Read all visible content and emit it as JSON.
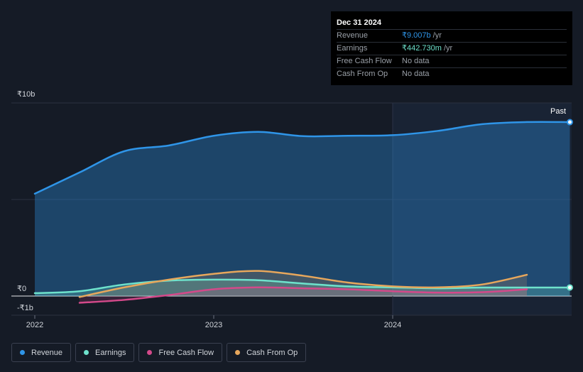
{
  "tooltip": {
    "date": "Dec 31 2024",
    "rows": [
      {
        "label": "Revenue",
        "value": "₹9.007b",
        "unit": "/yr"
      },
      {
        "label": "Earnings",
        "value": "₹442.730m",
        "unit": "/yr"
      },
      {
        "label": "Free Cash Flow",
        "value": "No data"
      },
      {
        "label": "Cash From Op",
        "value": "No data"
      }
    ]
  },
  "past_label": "Past",
  "legend": [
    {
      "label": "Revenue",
      "color": "#2f95e8"
    },
    {
      "label": "Earnings",
      "color": "#6ee2cc"
    },
    {
      "label": "Free Cash Flow",
      "color": "#d3498a"
    },
    {
      "label": "Cash From Op",
      "color": "#e7a75c"
    }
  ],
  "chart_data": {
    "type": "line",
    "title": "",
    "xlabel": "",
    "ylabel": "",
    "y_unit": "₹b",
    "y_ticks": [
      {
        "value": 10,
        "label": "₹10b"
      },
      {
        "value": 0,
        "label": "₹0"
      },
      {
        "value": -1,
        "label": "-₹1b"
      }
    ],
    "x_ticks": [
      {
        "value": 2022.0,
        "label": "2022"
      },
      {
        "value": 2023.0,
        "label": "2023"
      },
      {
        "value": 2024.0,
        "label": "2024"
      }
    ],
    "xlim": [
      2021.87,
      2024.99
    ],
    "ylim": [
      -1.0,
      10.0
    ],
    "grid": true,
    "legend_position": "bottom-left",
    "series": [
      {
        "name": "Revenue",
        "color": "#2f95e8",
        "area": true,
        "x": [
          2022.0,
          2022.25,
          2022.5,
          2022.75,
          2023.0,
          2023.25,
          2023.5,
          2023.75,
          2024.0,
          2024.25,
          2024.5,
          2024.75,
          2024.99
        ],
        "y": [
          5.3,
          6.4,
          7.5,
          7.8,
          8.3,
          8.5,
          8.28,
          8.3,
          8.33,
          8.55,
          8.9,
          9.01,
          9.007
        ]
      },
      {
        "name": "Earnings",
        "color": "#6ee2cc",
        "area": true,
        "x": [
          2022.0,
          2022.25,
          2022.5,
          2022.75,
          2023.0,
          2023.25,
          2023.5,
          2023.75,
          2024.0,
          2024.25,
          2024.5,
          2024.75,
          2024.99
        ],
        "y": [
          0.15,
          0.25,
          0.6,
          0.8,
          0.85,
          0.82,
          0.65,
          0.5,
          0.45,
          0.4,
          0.44,
          0.44,
          0.443
        ]
      },
      {
        "name": "Free Cash Flow",
        "color": "#d3498a",
        "area": true,
        "x": [
          2022.25,
          2022.5,
          2022.75,
          2023.0,
          2023.25,
          2023.5,
          2023.75,
          2024.0,
          2024.25,
          2024.5,
          2024.75
        ],
        "y": [
          -0.35,
          -0.2,
          0.05,
          0.35,
          0.45,
          0.4,
          0.35,
          0.25,
          0.18,
          0.2,
          0.35
        ]
      },
      {
        "name": "Cash From Op",
        "color": "#e7a75c",
        "area": true,
        "x": [
          2022.25,
          2022.5,
          2022.75,
          2023.0,
          2023.25,
          2023.5,
          2023.75,
          2024.0,
          2024.25,
          2024.5,
          2024.75
        ],
        "y": [
          -0.05,
          0.45,
          0.85,
          1.15,
          1.3,
          1.05,
          0.7,
          0.5,
          0.45,
          0.6,
          1.1
        ]
      }
    ]
  }
}
